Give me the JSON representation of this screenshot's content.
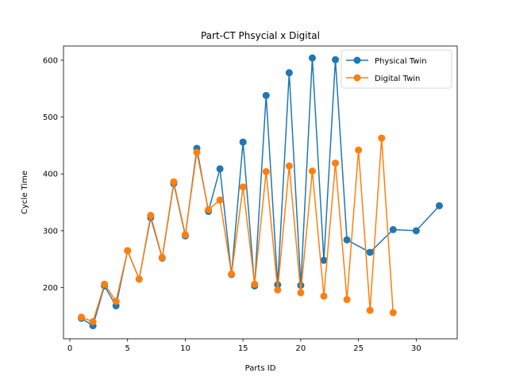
{
  "chart_data": {
    "type": "line",
    "title": "Part-CT Phsycial x Digital",
    "xlabel": "Parts ID",
    "ylabel": "Cycle Time",
    "xlim": [
      -0.55,
      33.55
    ],
    "ylim": [
      110,
      625
    ],
    "x_ticks": [
      0,
      5,
      10,
      15,
      20,
      25,
      30
    ],
    "y_ticks": [
      200,
      300,
      400,
      500,
      600
    ],
    "grid": false,
    "legend": "top-right",
    "series": [
      {
        "name": "Physical Twin",
        "color": "#1f77b4",
        "x": [
          1,
          2,
          3,
          4,
          5,
          6,
          7,
          8,
          9,
          10,
          11,
          12,
          13,
          14,
          15,
          16,
          17,
          18,
          19,
          20,
          21,
          22,
          23,
          24,
          26,
          28,
          30,
          32
        ],
        "y": [
          146,
          133,
          203,
          168,
          265,
          215,
          323,
          252,
          383,
          291,
          445,
          334,
          409,
          223,
          456,
          203,
          538,
          205,
          578,
          204,
          604,
          248,
          601,
          284,
          262,
          302,
          300,
          344
        ]
      },
      {
        "name": "Digital Twin",
        "color": "#ff7f0e",
        "x": [
          1,
          2,
          3,
          4,
          5,
          6,
          7,
          8,
          9,
          10,
          11,
          12,
          13,
          14,
          15,
          16,
          17,
          18,
          19,
          20,
          21,
          22,
          23,
          24,
          25,
          26,
          27,
          28
        ],
        "y": [
          148,
          140,
          206,
          176,
          265,
          215,
          327,
          253,
          386,
          293,
          438,
          337,
          354,
          224,
          377,
          206,
          404,
          196,
          414,
          191,
          405,
          185,
          419,
          179,
          442,
          160,
          463,
          156
        ]
      }
    ]
  }
}
